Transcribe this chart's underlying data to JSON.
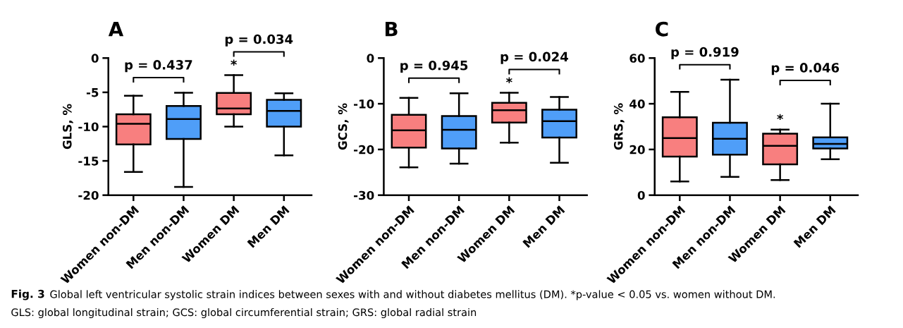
{
  "chart_data": [
    {
      "type": "box",
      "title": "A",
      "ylabel": "GLS, %",
      "categories": [
        "Women non-DM",
        "Men non-DM",
        "Women DM",
        "Men DM"
      ],
      "colors": [
        "#f87f7f",
        "#4f9ef8",
        "#f87f7f",
        "#4f9ef8"
      ],
      "ylim": [
        -20,
        0
      ],
      "yticks": [
        -20,
        -15,
        -10,
        -5,
        0
      ],
      "grid": false,
      "boxes": [
        {
          "low": -16.6,
          "q1": -12.6,
          "median": -9.6,
          "q3": -8.2,
          "high": -5.5
        },
        {
          "low": -18.8,
          "q1": -11.8,
          "median": -8.9,
          "q3": -7.0,
          "high": -5.05
        },
        {
          "low": -10.0,
          "q1": -8.2,
          "median": -7.35,
          "q3": -5.1,
          "high": -2.5
        },
        {
          "low": -14.2,
          "q1": -10.0,
          "median": -7.7,
          "q3": -6.1,
          "high": -5.15
        }
      ],
      "annotations": [
        "p = 0.437",
        "p = 0.034",
        "*",
        "Fig. 3",
        "Global left ventricular systolic strain indices between sexes with and without diabetes mellitus (DM). *p-value < 0.05 vs. women without DM.",
        "GLS: global longitudinal strain; GCS: global circumferential strain; GRS: global radial strain"
      ]
    },
    {
      "type": "box",
      "title": "B",
      "ylabel": "GCS, %",
      "categories": [
        "Women non-DM",
        "Men non-DM",
        "Women DM",
        "Men DM"
      ],
      "colors": [
        "#f87f7f",
        "#4f9ef8",
        "#f87f7f",
        "#4f9ef8"
      ],
      "ylim": [
        -30,
        0
      ],
      "yticks": [
        -30,
        -20,
        -10,
        0
      ],
      "grid": false,
      "boxes": [
        {
          "low": -23.9,
          "q1": -19.6,
          "median": -15.8,
          "q3": -12.4,
          "high": -8.7
        },
        {
          "low": -23.1,
          "q1": -19.8,
          "median": -15.7,
          "q3": -12.7,
          "high": -7.7
        },
        {
          "low": -18.5,
          "q1": -14.1,
          "median": -11.4,
          "q3": -9.8,
          "high": -7.6
        },
        {
          "low": -22.9,
          "q1": -17.4,
          "median": -13.8,
          "q3": -11.3,
          "high": -8.5
        }
      ],
      "annotations": [
        "p = 0.945",
        "p = 0.024",
        "*"
      ]
    },
    {
      "type": "box",
      "title": "C",
      "ylabel": "GRS, %",
      "categories": [
        "Women non-DM",
        "Men non-DM",
        "Women DM",
        "Men DM"
      ],
      "colors": [
        "#f87f7f",
        "#4f9ef8",
        "#f87f7f",
        "#4f9ef8"
      ],
      "ylim": [
        0,
        60
      ],
      "yticks": [
        0,
        20,
        40,
        60
      ],
      "grid": false,
      "boxes": [
        {
          "low": 6.0,
          "q1": 16.9,
          "median": 25.0,
          "q3": 34.1,
          "high": 45.2
        },
        {
          "low": 8.0,
          "q1": 17.7,
          "median": 24.7,
          "q3": 31.7,
          "high": 50.5
        },
        {
          "low": 6.6,
          "q1": 13.5,
          "median": 21.6,
          "q3": 26.9,
          "high": 28.7
        },
        {
          "low": 15.7,
          "q1": 20.4,
          "median": 22.4,
          "q3": 25.3,
          "high": 40.0
        }
      ],
      "annotations": [
        "p = 0.919",
        "p = 0.046",
        "*"
      ]
    }
  ]
}
